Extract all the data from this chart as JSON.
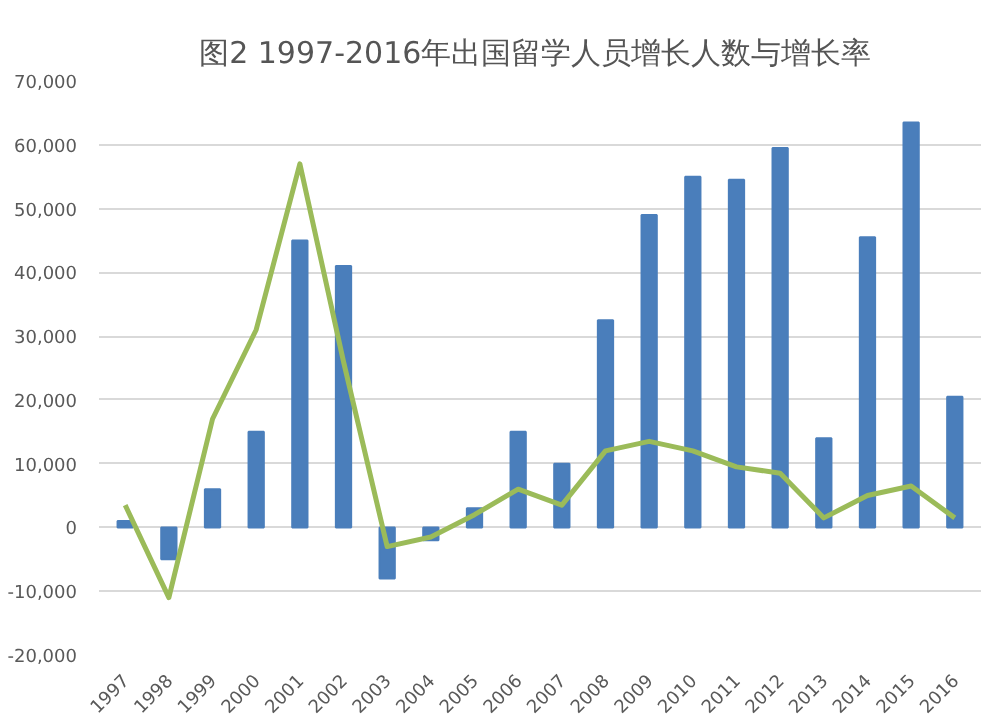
{
  "chart_data": {
    "type": "bar",
    "title": "图2  1997-2016年出国留学人员增长人数与增长率",
    "categories": [
      "1997",
      "1998",
      "1999",
      "2000",
      "2001",
      "2002",
      "2003",
      "2004",
      "2005",
      "2006",
      "2007",
      "2008",
      "2009",
      "2010",
      "2011",
      "2012",
      "2013",
      "2014",
      "2015",
      "2016"
    ],
    "series": [
      {
        "color": "#4a7ebb",
        "values": [
          1000,
          -5000,
          6000,
          15000,
          45000,
          41000,
          -8000,
          -2000,
          3000,
          15000,
          10000,
          32500,
          49000,
          55000,
          54500,
          59500,
          14000,
          45500,
          63500,
          20500
        ]
      },
      {
        "type": "line",
        "color": "#9bbb59",
        "values": [
          3500,
          -11000,
          17000,
          31000,
          57000,
          26000,
          -3000,
          -1500,
          2000,
          6000,
          3500,
          12000,
          13500,
          12000,
          9500,
          8500,
          1500,
          5000,
          6500,
          1500
        ]
      }
    ],
    "ylim": [
      -20000,
      70000
    ],
    "yticks": [
      {
        "value": -20000,
        "label": "-20,000"
      },
      {
        "value": -10000,
        "label": "-10,000"
      },
      {
        "value": 0,
        "label": "0"
      },
      {
        "value": 10000,
        "label": "10,000"
      },
      {
        "value": 20000,
        "label": "20,000"
      },
      {
        "value": 30000,
        "label": "30,000"
      },
      {
        "value": 40000,
        "label": "40,000"
      },
      {
        "value": 50000,
        "label": "50,000"
      },
      {
        "value": 60000,
        "label": "60,000"
      },
      {
        "value": 70000,
        "label": "70,000"
      }
    ],
    "grid": "y"
  }
}
